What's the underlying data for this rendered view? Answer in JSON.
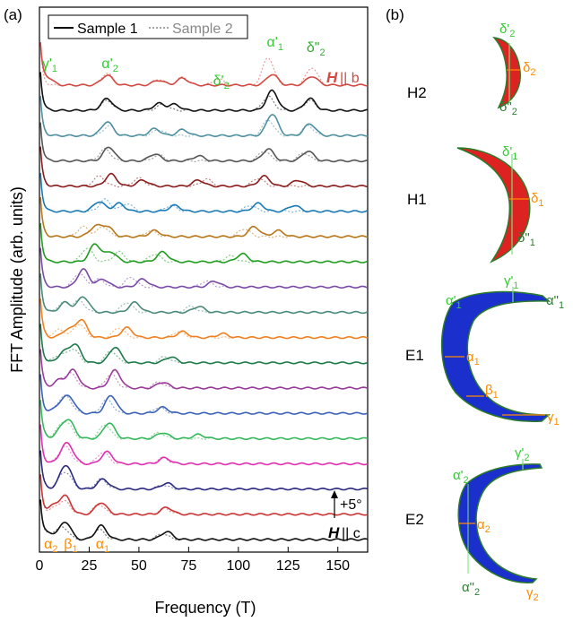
{
  "panel_a": {
    "label": "(a)",
    "ylabel": "FFT Amplitude (arb. units)",
    "xlabel": "Frequency (T)",
    "legend": [
      {
        "name": "Sample 1",
        "style": "solid",
        "color": "#000000"
      },
      {
        "name": "Sample 2",
        "style": "dotted",
        "color": "#888888"
      }
    ],
    "offset_label": "+5°",
    "top_field_label_italic": "H",
    "top_field_label_rest": "|| b",
    "bottom_field_label_italic": "H",
    "bottom_field_label_rest": "|| c",
    "peak_labels_top": [
      {
        "text": "γ'",
        "sub": "1",
        "x": 4,
        "color": "#33cc33"
      },
      {
        "text": "α'",
        "sub": "2",
        "x": 34,
        "color": "#33cc33"
      },
      {
        "text": "α'",
        "sub": "1",
        "x": 117,
        "color": "#33cc33"
      },
      {
        "text": "δ\"",
        "sub": "2",
        "x": 137,
        "color": "#33aa33"
      },
      {
        "text": "δ'",
        "sub": "2",
        "x": 90,
        "color": "#33cc33"
      }
    ],
    "peak_labels_bottom": [
      {
        "text": "α",
        "sub": "2",
        "x": 5,
        "color": "#ff8c00"
      },
      {
        "text": "β",
        "sub": "1",
        "x": 15,
        "color": "#ff8c00"
      },
      {
        "text": "α",
        "sub": "1",
        "x": 31,
        "color": "#ff8c00"
      }
    ]
  },
  "panel_b": {
    "label": "(b)",
    "orbits": [
      {
        "name": "H2",
        "fill": "#dd2222",
        "labels": [
          {
            "text": "δ'",
            "sub": "2",
            "color": "#33cc33"
          },
          {
            "text": "δ",
            "sub": "2",
            "color": "#ff8c00"
          },
          {
            "text": "δ\"",
            "sub": "2",
            "color": "#2e7d32"
          }
        ]
      },
      {
        "name": "H1",
        "fill": "#dd2222",
        "labels": [
          {
            "text": "δ'",
            "sub": "1",
            "color": "#33cc33"
          },
          {
            "text": "δ",
            "sub": "1",
            "color": "#ff8c00"
          },
          {
            "text": "δ\"",
            "sub": "1",
            "color": "#2e7d32"
          }
        ]
      },
      {
        "name": "E1",
        "fill": "#1a2fcc",
        "labels": [
          {
            "text": "α'",
            "sub": "1",
            "color": "#33cc33"
          },
          {
            "text": "γ'",
            "sub": "1",
            "color": "#33cc33"
          },
          {
            "text": "α\"",
            "sub": "1",
            "color": "#2e7d32"
          },
          {
            "text": "α",
            "sub": "1",
            "color": "#ff8c00"
          },
          {
            "text": "β",
            "sub": "1",
            "color": "#ff8c00"
          },
          {
            "text": "γ",
            "sub": "1",
            "color": "#ff8c00"
          }
        ]
      },
      {
        "name": "E2",
        "fill": "#1a2fcc",
        "labels": [
          {
            "text": "γ'",
            "sub": "2",
            "color": "#33cc33"
          },
          {
            "text": "α'",
            "sub": "2",
            "color": "#33cc33"
          },
          {
            "text": "α",
            "sub": "2",
            "color": "#ff8c00"
          },
          {
            "text": "α\"",
            "sub": "2",
            "color": "#2e7d32"
          },
          {
            "text": "γ",
            "sub": "2",
            "color": "#ff8c00"
          }
        ]
      }
    ]
  },
  "chart_data": {
    "type": "line",
    "title": "",
    "xlabel": "Frequency (T)",
    "ylabel": "FFT Amplitude (arb. units)",
    "xlim": [
      0,
      165
    ],
    "xticks": [
      0,
      25,
      50,
      75,
      100,
      125,
      150
    ],
    "angle_step_label": "+5°",
    "series": [
      {
        "color": "#d24a43",
        "peaks": [
          [
            4,
            0.35
          ],
          [
            34,
            0.5
          ],
          [
            60,
            0.25
          ],
          [
            72,
            0.35
          ],
          [
            117,
            0.55
          ],
          [
            137,
            0.45
          ]
        ],
        "peaks2": [
          [
            34,
            0.6
          ],
          [
            60,
            0.3
          ],
          [
            72,
            0.4
          ],
          [
            90,
            0.3
          ],
          [
            115,
            1.4
          ],
          [
            137,
            0.9
          ]
        ]
      },
      {
        "color": "#111111",
        "peaks": [
          [
            34,
            0.6
          ],
          [
            60,
            0.35
          ],
          [
            68,
            0.3
          ],
          [
            117,
            1.0
          ],
          [
            136,
            0.6
          ]
        ],
        "peaks2": [
          [
            34,
            0.5
          ],
          [
            62,
            0.3
          ],
          [
            115,
            0.7
          ],
          [
            136,
            0.5
          ]
        ]
      },
      {
        "color": "#4e8fa0",
        "peaks": [
          [
            34,
            0.7
          ],
          [
            58,
            0.35
          ],
          [
            72,
            0.3
          ],
          [
            117,
            1.1
          ],
          [
            136,
            0.6
          ]
        ],
        "peaks2": [
          [
            35,
            0.5
          ],
          [
            60,
            0.3
          ],
          [
            115,
            0.8
          ],
          [
            135,
            0.5
          ]
        ]
      },
      {
        "color": "#555555",
        "peaks": [
          [
            35,
            0.7
          ],
          [
            58,
            0.35
          ],
          [
            80,
            0.25
          ],
          [
            115,
            0.6
          ],
          [
            135,
            0.5
          ]
        ],
        "peaks2": [
          [
            33,
            0.6
          ],
          [
            60,
            0.3
          ],
          [
            113,
            0.5
          ],
          [
            133,
            0.4
          ]
        ]
      },
      {
        "color": "#8b1c1c",
        "peaks": [
          [
            36,
            0.6
          ],
          [
            52,
            0.3
          ],
          [
            80,
            0.3
          ],
          [
            113,
            0.5
          ],
          [
            130,
            0.3
          ]
        ],
        "peaks2": [
          [
            30,
            0.5
          ],
          [
            50,
            0.4
          ],
          [
            84,
            0.35
          ],
          [
            110,
            0.4
          ]
        ]
      },
      {
        "color": "#1a7ab6",
        "peaks": [
          [
            30,
            0.5
          ],
          [
            40,
            0.4
          ],
          [
            68,
            0.3
          ],
          [
            110,
            0.4
          ],
          [
            128,
            0.3
          ]
        ],
        "peaks2": [
          [
            33,
            0.6
          ],
          [
            44,
            0.4
          ],
          [
            66,
            0.3
          ],
          [
            106,
            0.3
          ]
        ]
      },
      {
        "color": "#b8761a",
        "peaks": [
          [
            28,
            0.5
          ],
          [
            34,
            0.5
          ],
          [
            58,
            0.3
          ],
          [
            108,
            0.5
          ],
          [
            120,
            0.3
          ]
        ],
        "peaks2": [
          [
            22,
            0.5
          ],
          [
            32,
            0.5
          ],
          [
            56,
            0.3
          ],
          [
            103,
            0.4
          ]
        ]
      },
      {
        "color": "#1f9d1f",
        "peaks": [
          [
            28,
            0.9
          ],
          [
            36,
            0.5
          ],
          [
            62,
            0.5
          ],
          [
            102,
            0.4
          ]
        ],
        "peaks2": [
          [
            24,
            0.7
          ],
          [
            40,
            0.5
          ],
          [
            58,
            0.4
          ],
          [
            96,
            0.3
          ]
        ]
      },
      {
        "color": "#7a4aa8",
        "peaks": [
          [
            22,
            0.9
          ],
          [
            32,
            0.4
          ],
          [
            52,
            0.4
          ],
          [
            88,
            0.3
          ]
        ],
        "peaks2": [
          [
            20,
            0.7
          ],
          [
            30,
            0.4
          ],
          [
            46,
            0.5
          ],
          [
            84,
            0.3
          ]
        ]
      },
      {
        "color": "#4a8a7a",
        "peaks": [
          [
            13,
            0.5
          ],
          [
            22,
            0.8
          ],
          [
            48,
            0.5
          ],
          [
            80,
            0.3
          ]
        ],
        "peaks2": [
          [
            12,
            0.5
          ],
          [
            20,
            0.6
          ],
          [
            44,
            0.5
          ],
          [
            76,
            0.3
          ]
        ]
      },
      {
        "color": "#f07f20",
        "peaks": [
          [
            14,
            0.4
          ],
          [
            21,
            0.9
          ],
          [
            44,
            0.5
          ],
          [
            72,
            0.3
          ],
          [
            92,
            0.2
          ]
        ],
        "peaks2": [
          [
            10,
            0.4
          ],
          [
            20,
            0.7
          ],
          [
            40,
            0.5
          ],
          [
            70,
            0.3
          ]
        ]
      },
      {
        "color": "#1e7a4a",
        "peaks": [
          [
            12,
            0.5
          ],
          [
            18,
            0.9
          ],
          [
            38,
            0.8
          ],
          [
            66,
            0.3
          ]
        ],
        "peaks2": [
          [
            10,
            0.4
          ],
          [
            17,
            0.7
          ],
          [
            36,
            0.6
          ],
          [
            63,
            0.3
          ]
        ]
      },
      {
        "color": "#9b3a9b",
        "peaks": [
          [
            10,
            0.4
          ],
          [
            17,
            0.9
          ],
          [
            38,
            0.9
          ],
          [
            62,
            0.3
          ]
        ],
        "peaks2": [
          [
            10,
            0.4
          ],
          [
            16,
            0.7
          ],
          [
            36,
            0.7
          ],
          [
            60,
            0.3
          ]
        ]
      },
      {
        "color": "#3a62b6",
        "peaks": [
          [
            10,
            0.4
          ],
          [
            15,
            0.8
          ],
          [
            36,
            0.9
          ],
          [
            62,
            0.3
          ]
        ],
        "peaks2": [
          [
            10,
            0.4
          ],
          [
            14,
            0.7
          ],
          [
            34,
            0.7
          ],
          [
            60,
            0.3
          ]
        ]
      },
      {
        "color": "#34b85a",
        "peaks": [
          [
            11,
            0.4
          ],
          [
            15,
            0.8
          ],
          [
            35,
            0.8
          ],
          [
            62,
            0.3
          ],
          [
            80,
            0.2
          ]
        ],
        "peaks2": [
          [
            10,
            0.4
          ],
          [
            14,
            0.7
          ],
          [
            33,
            0.7
          ],
          [
            60,
            0.3
          ]
        ]
      },
      {
        "color": "#e030b0",
        "peaks": [
          [
            12,
            0.5
          ],
          [
            15,
            0.7
          ],
          [
            34,
            0.6
          ],
          [
            63,
            0.3
          ]
        ],
        "peaks2": [
          [
            11,
            0.4
          ],
          [
            14,
            0.6
          ],
          [
            32,
            0.6
          ],
          [
            62,
            0.3
          ]
        ]
      },
      {
        "color": "#2a2a80",
        "peaks": [
          [
            12,
            0.5
          ],
          [
            14,
            0.8
          ],
          [
            32,
            0.5
          ],
          [
            64,
            0.3
          ]
        ],
        "peaks2": [
          [
            11,
            0.4
          ],
          [
            14,
            0.6
          ],
          [
            31,
            0.5
          ],
          [
            62,
            0.2
          ]
        ]
      },
      {
        "color": "#cc3333",
        "peaks": [
          [
            7,
            0.4
          ],
          [
            13,
            0.9
          ],
          [
            31,
            0.6
          ],
          [
            64,
            0.35
          ]
        ],
        "peaks2": [
          [
            8,
            0.3
          ],
          [
            13,
            0.6
          ],
          [
            30,
            0.5
          ],
          [
            63,
            0.3
          ]
        ]
      },
      {
        "color": "#111111",
        "peaks": [
          [
            5,
            0.3
          ],
          [
            13,
            0.9
          ],
          [
            31,
            0.7
          ],
          [
            64,
            0.4
          ]
        ],
        "peaks2": [
          [
            6,
            0.3
          ],
          [
            12,
            0.6
          ],
          [
            30,
            0.5
          ],
          [
            62,
            0.3
          ]
        ]
      }
    ]
  }
}
